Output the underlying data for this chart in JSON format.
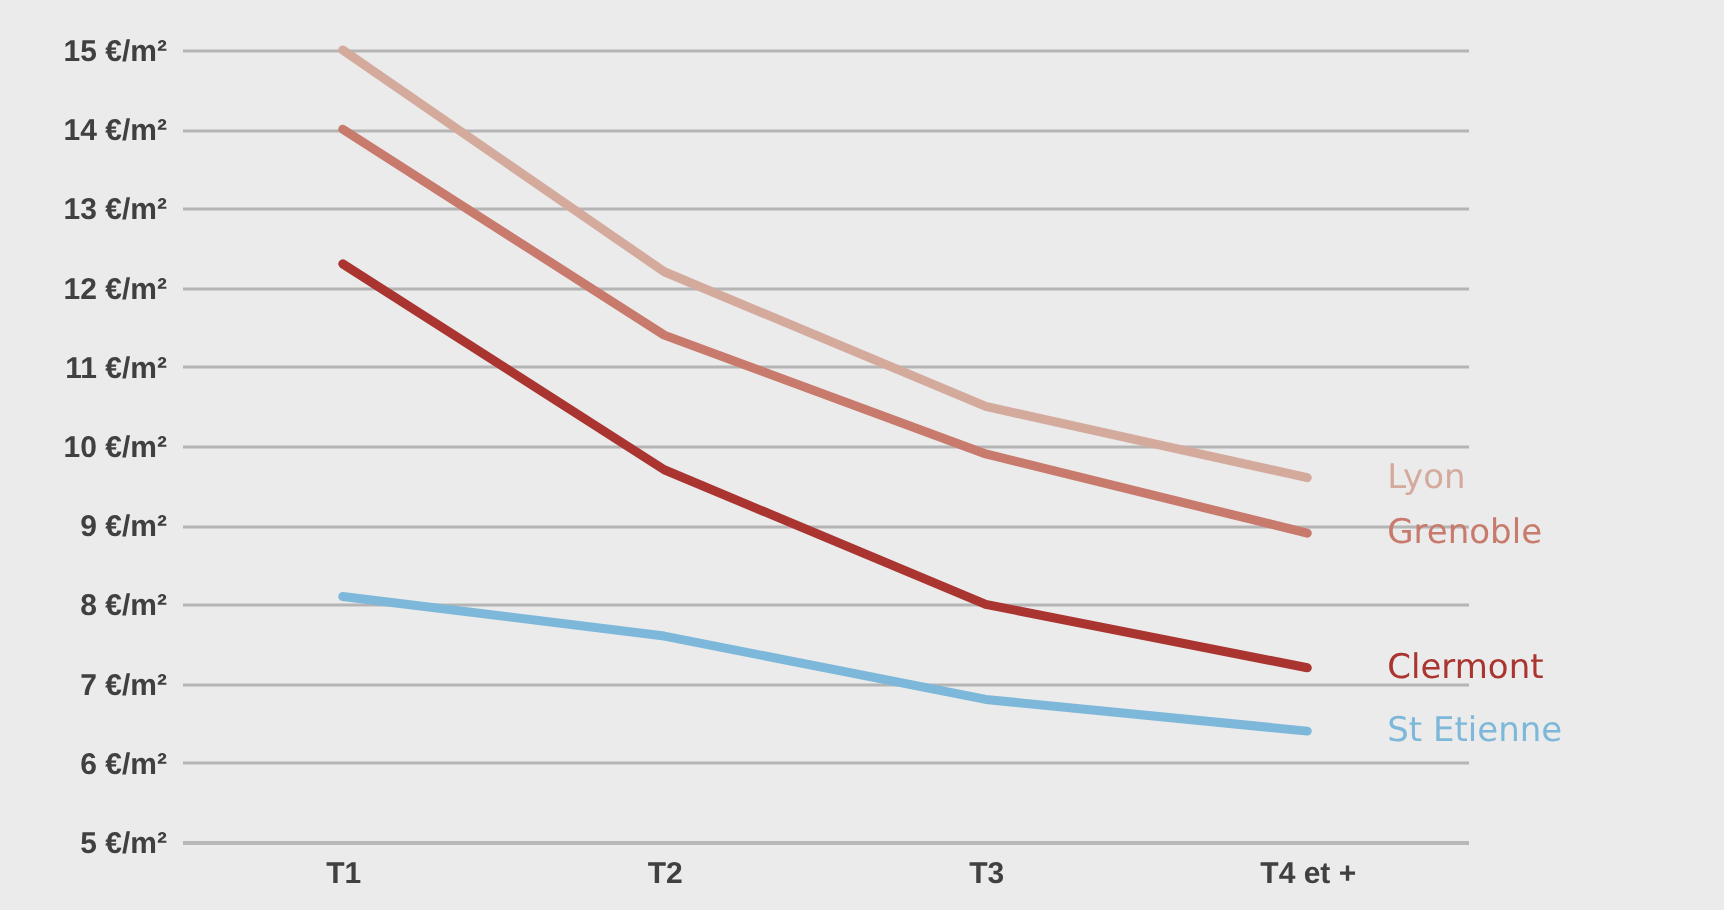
{
  "chart_data": {
    "type": "line",
    "categories": [
      "T1",
      "T2",
      "T3",
      "T4 et +"
    ],
    "series": [
      {
        "name": "Lyon",
        "color": "#d4aa9d",
        "values": [
          15.0,
          12.2,
          10.5,
          9.6
        ]
      },
      {
        "name": "Grenoble",
        "color": "#c87a6c",
        "values": [
          14.0,
          11.4,
          9.9,
          8.9
        ]
      },
      {
        "name": "Clermont",
        "color": "#aa3530",
        "values": [
          12.3,
          9.7,
          8.0,
          7.2
        ]
      },
      {
        "name": "St Etienne",
        "color": "#7db8da",
        "values": [
          8.1,
          7.6,
          6.8,
          6.4
        ]
      }
    ],
    "ylim": [
      5,
      15
    ],
    "yticks": [
      {
        "value": 5,
        "label": "5 €/m²"
      },
      {
        "value": 6,
        "label": "6 €/m²"
      },
      {
        "value": 7,
        "label": "7 €/m²"
      },
      {
        "value": 8,
        "label": "8 €/m²"
      },
      {
        "value": 9,
        "label": "9 €/m²"
      },
      {
        "value": 10,
        "label": "10 €/m²"
      },
      {
        "value": 11,
        "label": "11 €/m²"
      },
      {
        "value": 12,
        "label": "12 €/m²"
      },
      {
        "value": 13,
        "label": "13 €/m²"
      },
      {
        "value": 14,
        "label": "14 €/m²"
      },
      {
        "value": 15,
        "label": "15 €/m²"
      }
    ],
    "grid": "y",
    "marker": "none",
    "line_style": "solid"
  }
}
